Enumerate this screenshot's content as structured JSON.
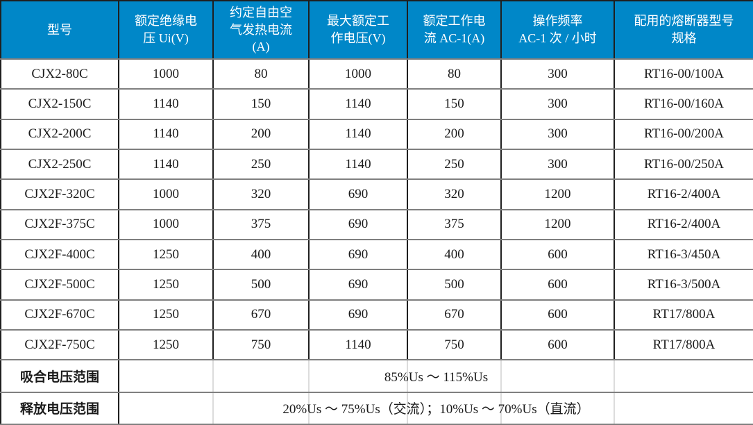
{
  "colors": {
    "header_bg": "#0087C8",
    "header_text": "#FFFFFF",
    "border_dark": "#1F1F1F",
    "border_gray": "#7F7F7F",
    "faint_divider": "#DCDCDC",
    "body_text": "#1A1A1A"
  },
  "table": {
    "header": {
      "columns": [
        {
          "key": "model",
          "label": "型号"
        },
        {
          "key": "rated_insulation_voltage",
          "label": "额定绝缘电\n压 Ui(V)"
        },
        {
          "key": "conventional_free_air_thermal_current",
          "label": "约定自由空\n气发热电流\n(A)"
        },
        {
          "key": "max_rated_working_voltage",
          "label": "最大额定工\n作电压(V)"
        },
        {
          "key": "rated_working_current_ac1",
          "label": "额定工作电\n流 AC-1(A)"
        },
        {
          "key": "operating_frequency",
          "label": "操作频率\nAC-1 次 / 小时"
        },
        {
          "key": "fuse_model",
          "label": "配用的熔断器型号\n规格"
        }
      ]
    },
    "rows": [
      {
        "model": "CJX2-80C",
        "rated_insulation_voltage": "1000",
        "conventional_free_air_thermal_current": "80",
        "max_rated_working_voltage": "1000",
        "rated_working_current_ac1": "80",
        "operating_frequency": "300",
        "fuse_model": "RT16-00/100A"
      },
      {
        "model": "CJX2-150C",
        "rated_insulation_voltage": "1140",
        "conventional_free_air_thermal_current": "150",
        "max_rated_working_voltage": "1140",
        "rated_working_current_ac1": "150",
        "operating_frequency": "300",
        "fuse_model": "RT16-00/160A"
      },
      {
        "model": "CJX2-200C",
        "rated_insulation_voltage": "1140",
        "conventional_free_air_thermal_current": "200",
        "max_rated_working_voltage": "1140",
        "rated_working_current_ac1": "200",
        "operating_frequency": "300",
        "fuse_model": "RT16-00/200A"
      },
      {
        "model": "CJX2-250C",
        "rated_insulation_voltage": "1140",
        "conventional_free_air_thermal_current": "250",
        "max_rated_working_voltage": "1140",
        "rated_working_current_ac1": "250",
        "operating_frequency": "300",
        "fuse_model": "RT16-00/250A"
      },
      {
        "model": "CJX2F-320C",
        "rated_insulation_voltage": "1000",
        "conventional_free_air_thermal_current": "320",
        "max_rated_working_voltage": "690",
        "rated_working_current_ac1": "320",
        "operating_frequency": "1200",
        "fuse_model": "RT16-2/400A"
      },
      {
        "model": "CJX2F-375C",
        "rated_insulation_voltage": "1000",
        "conventional_free_air_thermal_current": "375",
        "max_rated_working_voltage": "690",
        "rated_working_current_ac1": "375",
        "operating_frequency": "1200",
        "fuse_model": "RT16-2/400A"
      },
      {
        "model": "CJX2F-400C",
        "rated_insulation_voltage": "1250",
        "conventional_free_air_thermal_current": "400",
        "max_rated_working_voltage": "690",
        "rated_working_current_ac1": "400",
        "operating_frequency": "600",
        "fuse_model": "RT16-3/450A"
      },
      {
        "model": "CJX2F-500C",
        "rated_insulation_voltage": "1250",
        "conventional_free_air_thermal_current": "500",
        "max_rated_working_voltage": "690",
        "rated_working_current_ac1": "500",
        "operating_frequency": "600",
        "fuse_model": "RT16-3/500A"
      },
      {
        "model": "CJX2F-670C",
        "rated_insulation_voltage": "1250",
        "conventional_free_air_thermal_current": "670",
        "max_rated_working_voltage": "690",
        "rated_working_current_ac1": "670",
        "operating_frequency": "600",
        "fuse_model": "RT17/800A"
      },
      {
        "model": "CJX2F-750C",
        "rated_insulation_voltage": "1250",
        "conventional_free_air_thermal_current": "750",
        "max_rated_working_voltage": "1140",
        "rated_working_current_ac1": "750",
        "operating_frequency": "600",
        "fuse_model": "RT17/800A"
      }
    ],
    "footer_rows": [
      {
        "name": "pull-in-voltage-range",
        "label": "吸合电压范围",
        "value": "85%Us ～ 115%Us"
      },
      {
        "name": "release-voltage-range",
        "label": "释放电压范围",
        "value": "20%Us ～ 75%Us（交流）；10%Us ～ 70%Us（直流）"
      }
    ]
  }
}
